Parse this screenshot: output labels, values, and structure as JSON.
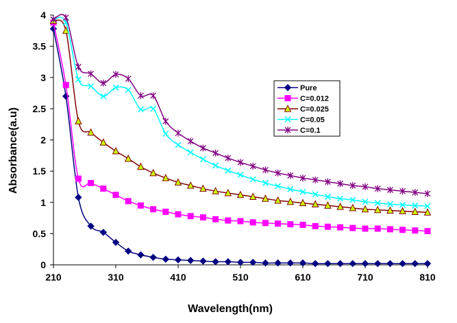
{
  "chart_data": {
    "type": "line",
    "title": "",
    "xlabel": "Wavelength(nm)",
    "ylabel": "Absorbance(a.u)",
    "xlim": [
      210,
      810
    ],
    "ylim": [
      0,
      4
    ],
    "xticks": [
      210,
      310,
      410,
      510,
      610,
      710,
      810
    ],
    "yticks": [
      0,
      0.5,
      1,
      1.5,
      2,
      2.5,
      3,
      3.5,
      4
    ],
    "ytick_labels": [
      "0",
      "0.5",
      "1",
      "1.5",
      "2",
      "2.5",
      "3",
      "3.5",
      "4"
    ],
    "grid": false,
    "legend_position": "right-center",
    "x": [
      210,
      230,
      250,
      270,
      290,
      310,
      330,
      350,
      370,
      390,
      410,
      430,
      450,
      470,
      490,
      510,
      530,
      550,
      570,
      590,
      610,
      630,
      650,
      670,
      690,
      710,
      730,
      750,
      770,
      790,
      810
    ],
    "series": [
      {
        "name": "Pure",
        "color": "#000080",
        "marker": "diamond",
        "values": [
          3.78,
          2.7,
          1.08,
          0.62,
          0.52,
          0.36,
          0.22,
          0.16,
          0.12,
          0.09,
          0.08,
          0.07,
          0.06,
          0.05,
          0.05,
          0.04,
          0.04,
          0.03,
          0.03,
          0.03,
          0.03,
          0.02,
          0.02,
          0.02,
          0.02,
          0.02,
          0.02,
          0.02,
          0.02,
          0.02,
          0.02
        ]
      },
      {
        "name": "C=0.012",
        "color": "#FF00FF",
        "marker": "square",
        "values": [
          3.88,
          2.88,
          1.38,
          1.31,
          1.22,
          1.12,
          1.02,
          0.95,
          0.89,
          0.85,
          0.81,
          0.78,
          0.76,
          0.73,
          0.71,
          0.7,
          0.68,
          0.67,
          0.66,
          0.65,
          0.64,
          0.62,
          0.61,
          0.6,
          0.59,
          0.58,
          0.58,
          0.57,
          0.56,
          0.55,
          0.54
        ]
      },
      {
        "name": "C=0.025",
        "color": "#800000",
        "marker": "triangle",
        "marker_fill": "#CCFF00",
        "values": [
          3.91,
          3.75,
          2.3,
          2.12,
          1.96,
          1.82,
          1.7,
          1.57,
          1.47,
          1.39,
          1.32,
          1.27,
          1.22,
          1.18,
          1.15,
          1.12,
          1.09,
          1.06,
          1.03,
          1.01,
          0.99,
          0.97,
          0.95,
          0.93,
          0.91,
          0.89,
          0.88,
          0.87,
          0.86,
          0.85,
          0.84
        ]
      },
      {
        "name": "C=0.05",
        "color": "#00FFFF",
        "marker": "x",
        "values": [
          3.93,
          3.88,
          2.97,
          2.86,
          2.7,
          2.84,
          2.8,
          2.49,
          2.5,
          2.1,
          1.92,
          1.8,
          1.69,
          1.59,
          1.51,
          1.44,
          1.37,
          1.31,
          1.26,
          1.21,
          1.17,
          1.13,
          1.09,
          1.06,
          1.04,
          1.01,
          0.99,
          0.97,
          0.96,
          0.95,
          0.94
        ]
      },
      {
        "name": "C=0.1",
        "color": "#800080",
        "marker": "asterisk",
        "values": [
          3.93,
          3.96,
          3.17,
          3.06,
          2.91,
          3.05,
          2.98,
          2.71,
          2.71,
          2.3,
          2.11,
          1.98,
          1.87,
          1.79,
          1.71,
          1.64,
          1.58,
          1.52,
          1.47,
          1.43,
          1.39,
          1.36,
          1.33,
          1.3,
          1.27,
          1.25,
          1.22,
          1.2,
          1.18,
          1.16,
          1.14
        ]
      }
    ]
  }
}
